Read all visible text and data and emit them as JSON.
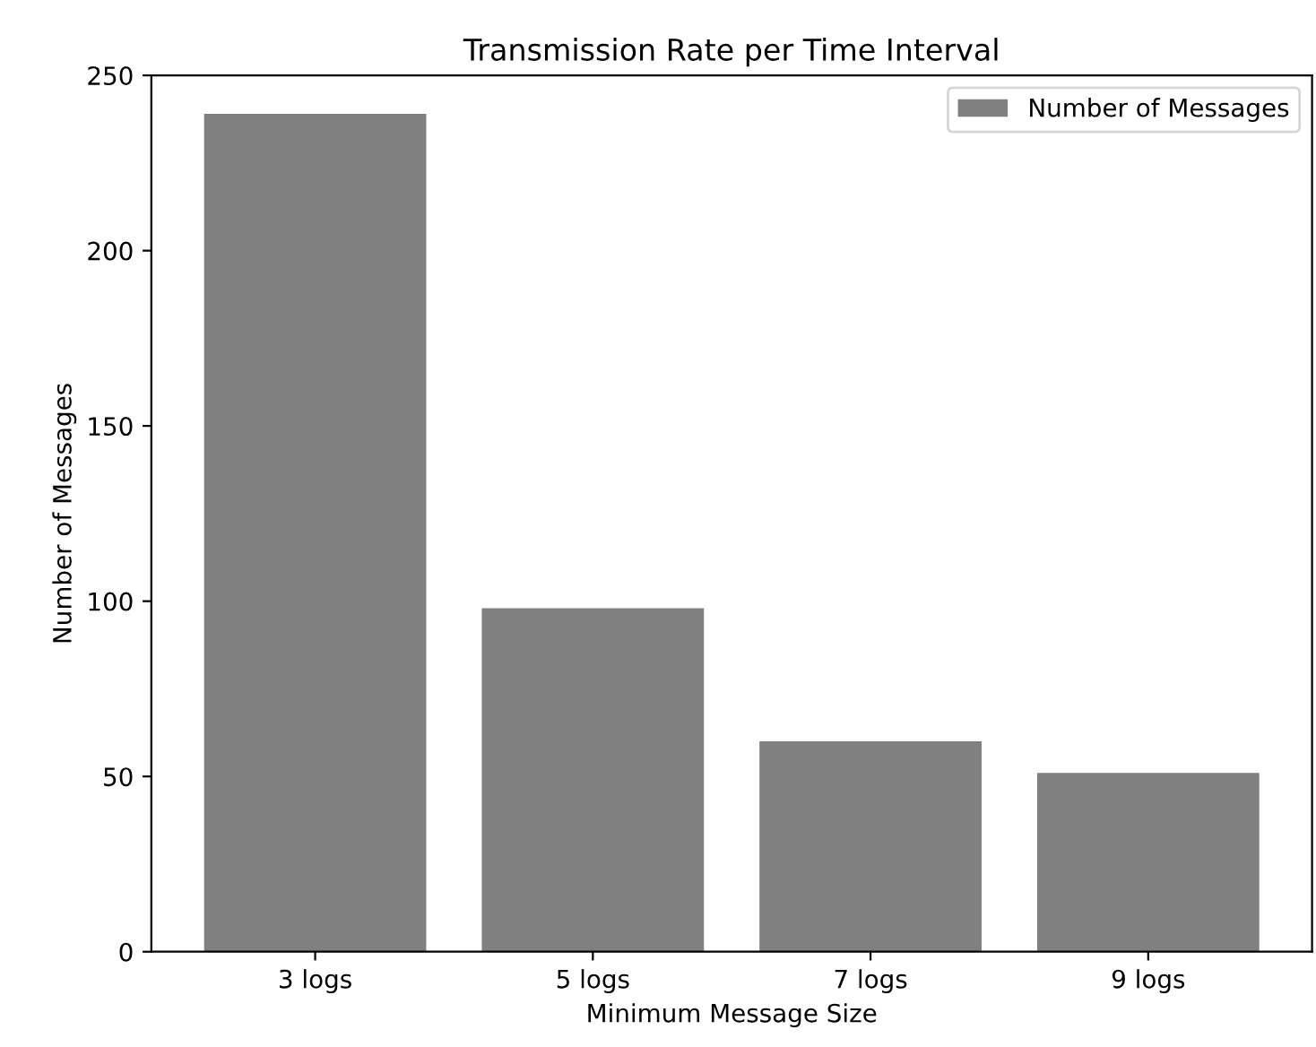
{
  "chart_data": {
    "type": "bar",
    "title": "Transmission Rate per Time Interval",
    "xlabel": "Minimum Message Size",
    "ylabel": "Number of Messages",
    "categories": [
      "3 logs",
      "5 logs",
      "7 logs",
      "9 logs"
    ],
    "series": [
      {
        "name": "Number of Messages",
        "color": "#808080",
        "values": [
          239,
          98,
          60,
          51
        ]
      }
    ],
    "ylim": [
      0,
      250
    ],
    "yticks": [
      0,
      50,
      100,
      150,
      200,
      250
    ],
    "legend": "upper right"
  }
}
